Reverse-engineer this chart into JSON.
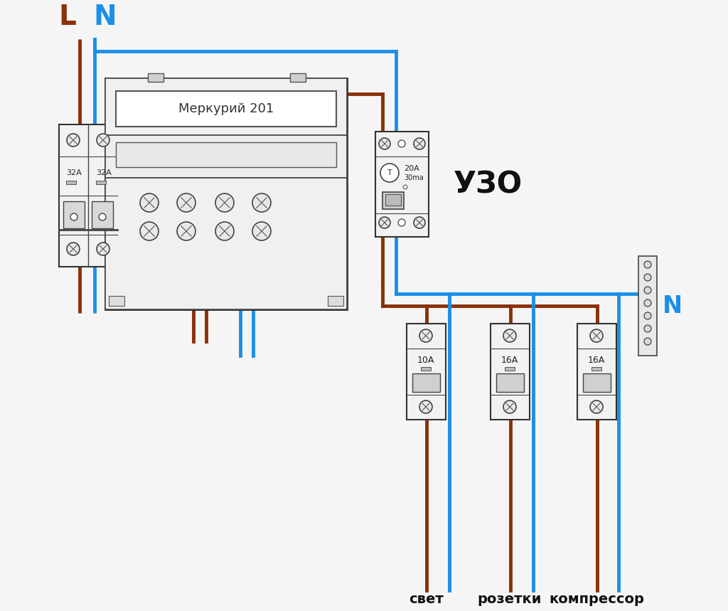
{
  "bg_color": "#f5f5f5",
  "brown": "#8B3008",
  "blue": "#1B8FE8",
  "dark": "#1a1a1a",
  "white": "#ffffff",
  "label_L": "L",
  "label_N_top": "N",
  "label_N_right": "N",
  "label_mercury": "Меркурий 201",
  "label_uzo": "УЗО",
  "label_32A": "32A",
  "label_20A": "20A",
  "label_30ma": "30ma",
  "label_10A": "10A",
  "label_16A1": "16A",
  "label_16A2": "16A",
  "label_svet": "свет",
  "label_rozetki": "розетки",
  "label_compressor": "компрессор",
  "lw_wire": 3.5,
  "lw_border": 1.5
}
